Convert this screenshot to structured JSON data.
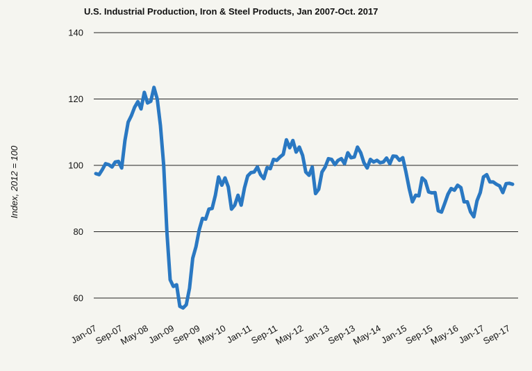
{
  "chart_data": {
    "type": "line",
    "title": "U.S. Industrial Production, Iron & Steel Products, Jan 2007-Oct. 2017",
    "xlabel": "",
    "ylabel": "Index, 2012 = 100",
    "ylim": [
      60,
      140
    ],
    "yticks": [
      60,
      80,
      100,
      120,
      140
    ],
    "grid": true,
    "colors": {
      "series": "#2a78c2",
      "grid": "#222222",
      "background": "#f5f5f0"
    },
    "tick_labels": [
      "Jan-07",
      "Sep-07",
      "May-08",
      "Jan-09",
      "Sep-09",
      "May-10",
      "Jan-11",
      "Sep-11",
      "May-12",
      "Jan-13",
      "Sep-13",
      "May-14",
      "Jan-15",
      "Sep-15",
      "May-16",
      "Jan-17",
      "Sep-17"
    ],
    "tick_index": [
      0,
      8,
      16,
      24,
      32,
      40,
      48,
      56,
      64,
      72,
      80,
      88,
      96,
      104,
      112,
      120,
      128
    ],
    "series": [
      {
        "name": "Iron & Steel Products",
        "start": "Jan-07",
        "frequency": "monthly",
        "values": [
          97.5,
          97.2,
          98.7,
          100.5,
          100.2,
          99.5,
          101.0,
          101.2,
          99.2,
          107.5,
          113.0,
          115.0,
          117.5,
          119.2,
          117.0,
          122.0,
          118.8,
          119.3,
          123.5,
          120.0,
          112.0,
          100.0,
          80.0,
          65.5,
          63.5,
          64.0,
          57.5,
          57.0,
          58.0,
          63.0,
          72.0,
          75.5,
          80.5,
          84.0,
          83.8,
          86.8,
          87.0,
          91.0,
          96.5,
          94.0,
          96.2,
          93.5,
          86.8,
          88.0,
          91.0,
          88.0,
          93.2,
          96.8,
          97.8,
          98.0,
          99.5,
          97.2,
          96.0,
          99.3,
          99.0,
          101.8,
          101.5,
          102.5,
          103.3,
          107.7,
          105.3,
          107.5,
          104.0,
          105.5,
          103.0,
          98.0,
          97.0,
          99.5,
          91.5,
          92.8,
          98.0,
          99.5,
          102.0,
          101.8,
          100.2,
          101.5,
          102.0,
          100.5,
          103.8,
          102.3,
          102.5,
          105.5,
          103.8,
          100.8,
          99.2,
          101.8,
          101.0,
          101.5,
          100.8,
          101.0,
          102.2,
          100.5,
          102.8,
          102.7,
          101.5,
          102.3,
          98.0,
          93.0,
          89.0,
          91.0,
          90.8,
          96.2,
          95.3,
          92.0,
          91.7,
          91.8,
          86.3,
          85.9,
          88.5,
          91.3,
          93.0,
          92.5,
          94.0,
          93.3,
          89.0,
          89.0,
          86.0,
          84.5,
          89.3,
          91.8,
          96.5,
          97.2,
          95.0,
          95.0,
          94.3,
          93.8,
          91.8,
          94.5,
          94.6,
          94.3
        ]
      }
    ]
  }
}
